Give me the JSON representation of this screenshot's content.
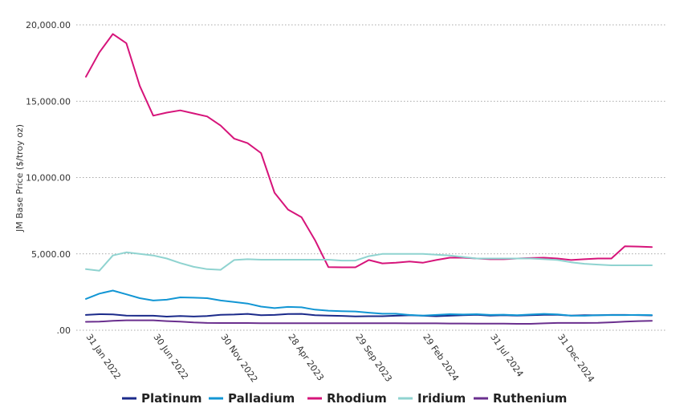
{
  "chart_data": {
    "type": "line",
    "title": "",
    "xlabel": "",
    "ylabel": "JM Base Price ($/troy oz)",
    "ylim": [
      0,
      20000
    ],
    "yticks": [
      0,
      5000,
      10000,
      15000,
      20000
    ],
    "ytick_labels": [
      ".00",
      "5,000.00",
      "10,000.00",
      "15,000.00",
      "20,000.00"
    ],
    "grid": "horizontal dotted",
    "legend_position": "bottom",
    "x_count": 43,
    "x_ticks": [
      {
        "index": 0,
        "label": "31 Jan 2022"
      },
      {
        "index": 5,
        "label": "30 Jun 2022"
      },
      {
        "index": 10,
        "label": "30 Nov 2022"
      },
      {
        "index": 15,
        "label": "28 Apr 2023"
      },
      {
        "index": 20,
        "label": "29 Sep 2023"
      },
      {
        "index": 25,
        "label": "29 Feb 2024"
      },
      {
        "index": 30,
        "label": "31 Jul 2024"
      },
      {
        "index": 35,
        "label": "31 Dec 2024"
      }
    ],
    "series": [
      {
        "name": "Platinum",
        "color": "#1b2a8a",
        "values": [
          1000,
          1050,
          1040,
          960,
          950,
          950,
          890,
          930,
          900,
          930,
          1010,
          1030,
          1070,
          980,
          1000,
          1060,
          1070,
          980,
          960,
          940,
          910,
          920,
          920,
          950,
          980,
          950,
          920,
          950,
          980,
          1010,
          960,
          980,
          960,
          980,
          1010,
          1010,
          960,
          980,
          980,
          1000,
          1000,
          990,
          970
        ]
      },
      {
        "name": "Palladium",
        "color": "#1296d4",
        "values": [
          2050,
          2400,
          2600,
          2350,
          2100,
          1950,
          2000,
          2150,
          2130,
          2100,
          1950,
          1850,
          1750,
          1550,
          1450,
          1530,
          1500,
          1350,
          1280,
          1250,
          1230,
          1150,
          1080,
          1080,
          1000,
          960,
          1000,
          1050,
          1030,
          1050,
          1000,
          1020,
          980,
          1030,
          1070,
          1040,
          960,
          950,
          980,
          990,
          990,
          1000,
          990
        ]
      },
      {
        "name": "Rhodium",
        "color": "#d6147a",
        "values": [
          16600,
          18200,
          19400,
          18800,
          16000,
          14050,
          14250,
          14400,
          14200,
          14000,
          13400,
          12550,
          12250,
          11600,
          9000,
          7900,
          7400,
          5900,
          4130,
          4120,
          4120,
          4600,
          4380,
          4420,
          4500,
          4420,
          4600,
          4750,
          4750,
          4700,
          4650,
          4650,
          4700,
          4730,
          4750,
          4700,
          4600,
          4650,
          4700,
          4700,
          5500,
          5480,
          5450
        ]
      },
      {
        "name": "Iridium",
        "color": "#8fd3d0",
        "values": [
          4000,
          3900,
          4900,
          5100,
          5000,
          4900,
          4700,
          4400,
          4150,
          4000,
          3960,
          4600,
          4650,
          4620,
          4620,
          4620,
          4620,
          4620,
          4620,
          4560,
          4560,
          4850,
          5000,
          5000,
          5000,
          5000,
          4950,
          4900,
          4800,
          4700,
          4700,
          4700,
          4700,
          4700,
          4650,
          4600,
          4450,
          4350,
          4300,
          4250,
          4250,
          4250,
          4250
        ]
      },
      {
        "name": "Ruthenium",
        "color": "#6a2f8e",
        "values": [
          550,
          560,
          620,
          650,
          650,
          650,
          600,
          560,
          510,
          480,
          470,
          470,
          470,
          460,
          460,
          460,
          460,
          460,
          460,
          460,
          460,
          460,
          460,
          460,
          450,
          450,
          450,
          440,
          440,
          430,
          430,
          430,
          420,
          420,
          450,
          480,
          480,
          480,
          490,
          520,
          560,
          600,
          620
        ]
      }
    ]
  }
}
